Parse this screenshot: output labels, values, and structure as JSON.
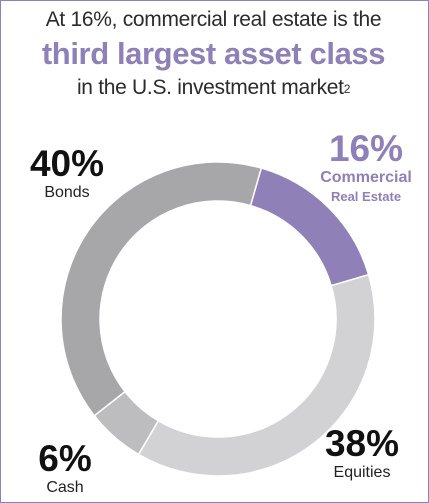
{
  "headline": {
    "line1": "At 16%, commercial real estate is the",
    "line2": "third largest asset class",
    "line3": "in the U.S. investment market",
    "footnote": "2"
  },
  "colors": {
    "accent": "#8f80b8",
    "bonds": "#a7a7a9",
    "equities": "#d2d2d4",
    "cash": "#bdbdbf"
  },
  "chart_data": {
    "type": "pie",
    "donut": true,
    "title": "",
    "slices": [
      {
        "label": "Commercial Real Estate",
        "label_line1": "Commercial",
        "label_line2": "Real Estate",
        "pct_label": "16%",
        "value": 16,
        "color": "#8f80b8"
      },
      {
        "label": "Equities",
        "pct_label": "38%",
        "value": 38,
        "color": "#d2d2d4"
      },
      {
        "label": "Cash",
        "pct_label": "6%",
        "value": 6,
        "color": "#bdbdbf"
      },
      {
        "label": "Bonds",
        "pct_label": "40%",
        "value": 40,
        "color": "#a7a7a9"
      }
    ]
  }
}
